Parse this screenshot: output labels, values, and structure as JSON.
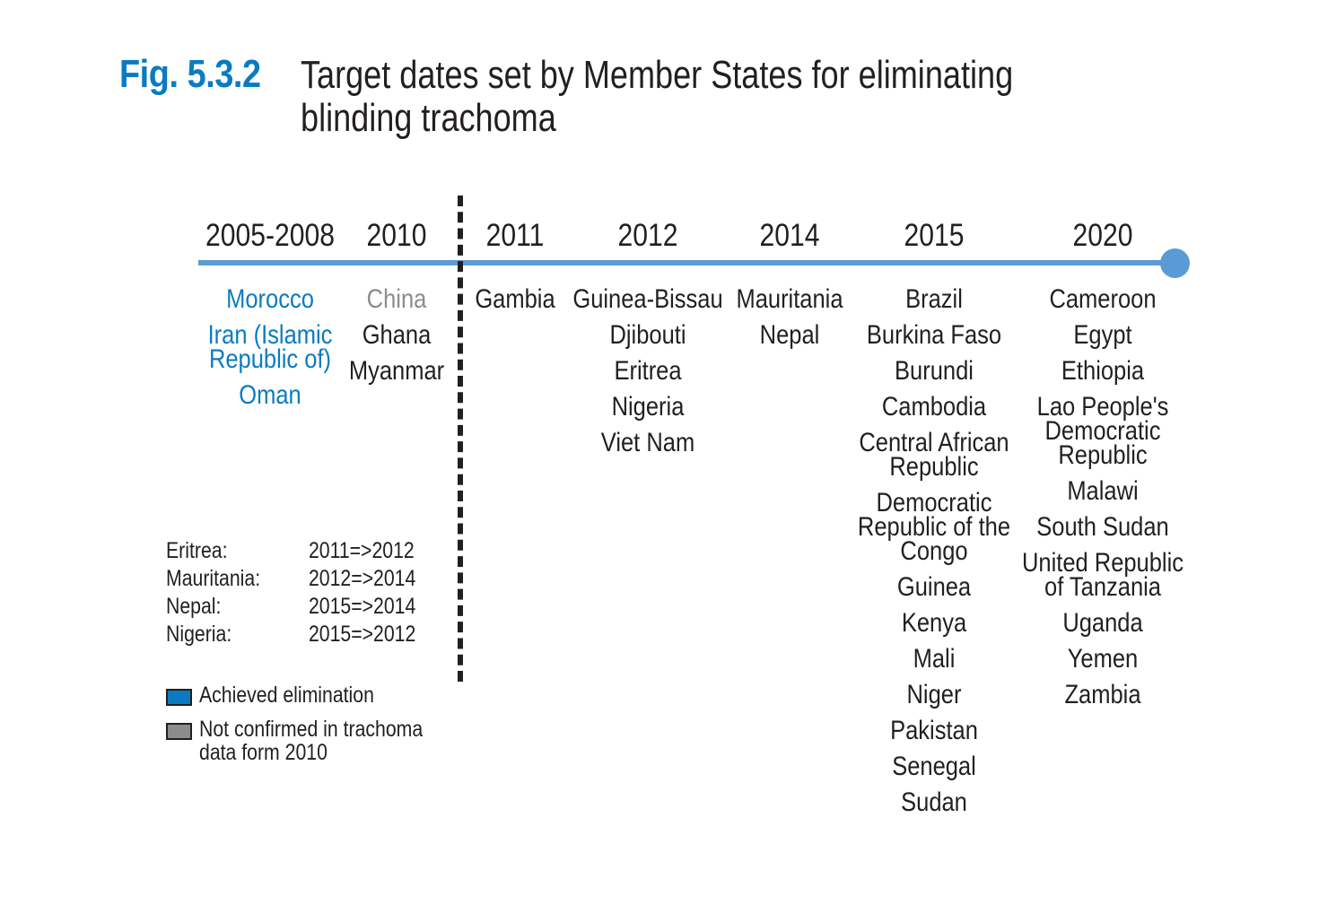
{
  "figure": {
    "label": "Fig. 5.3.2",
    "title_lines": [
      "Target dates set by Member States for eliminating",
      "blinding trachoma"
    ]
  },
  "colors": {
    "accent": "#0a7bc2",
    "timeline": "#5b9bd5",
    "achieved": "#0a7bc2",
    "not_confirmed": "#8c8c8c",
    "text": "#231f20"
  },
  "timeline": [
    {
      "year": "2005-2008",
      "countries": [
        {
          "name": "Morocco",
          "status": "achieved"
        },
        {
          "name": "Iran (Islamic\nRepublic of)",
          "status": "achieved"
        },
        {
          "name": "Oman",
          "status": "achieved"
        }
      ]
    },
    {
      "year": "2010",
      "countries": [
        {
          "name": "China",
          "status": "not_confirmed"
        },
        {
          "name": "Ghana",
          "status": "target"
        },
        {
          "name": "Myanmar",
          "status": "target"
        }
      ]
    },
    {
      "year": "2011",
      "countries": [
        {
          "name": "Gambia",
          "status": "target"
        }
      ]
    },
    {
      "year": "2012",
      "countries": [
        {
          "name": "Guinea-Bissau",
          "status": "target"
        },
        {
          "name": "Djibouti",
          "status": "target"
        },
        {
          "name": "Eritrea",
          "status": "target"
        },
        {
          "name": "Nigeria",
          "status": "target"
        },
        {
          "name": "Viet Nam",
          "status": "target"
        }
      ]
    },
    {
      "year": "2014",
      "countries": [
        {
          "name": "Mauritania",
          "status": "target"
        },
        {
          "name": "Nepal",
          "status": "target"
        }
      ]
    },
    {
      "year": "2015",
      "countries": [
        {
          "name": "Brazil",
          "status": "target"
        },
        {
          "name": "Burkina Faso",
          "status": "target"
        },
        {
          "name": "Burundi",
          "status": "target"
        },
        {
          "name": "Cambodia",
          "status": "target"
        },
        {
          "name": "Central African\nRepublic",
          "status": "target"
        },
        {
          "name": "Democratic\nRepublic of the\nCongo",
          "status": "target"
        },
        {
          "name": "Guinea",
          "status": "target"
        },
        {
          "name": "Kenya",
          "status": "target"
        },
        {
          "name": "Mali",
          "status": "target"
        },
        {
          "name": "Niger",
          "status": "target"
        },
        {
          "name": "Pakistan",
          "status": "target"
        },
        {
          "name": "Senegal",
          "status": "target"
        },
        {
          "name": "Sudan",
          "status": "target"
        }
      ]
    },
    {
      "year": "2020",
      "countries": [
        {
          "name": "Cameroon",
          "status": "target"
        },
        {
          "name": "Egypt",
          "status": "target"
        },
        {
          "name": "Ethiopia",
          "status": "target"
        },
        {
          "name": "Lao People's\nDemocratic\nRepublic",
          "status": "target"
        },
        {
          "name": "Malawi",
          "status": "target"
        },
        {
          "name": "South Sudan",
          "status": "target"
        },
        {
          "name": "United Republic\nof Tanzania",
          "status": "target"
        },
        {
          "name": "Uganda",
          "status": "target"
        },
        {
          "name": "Yemen",
          "status": "target"
        },
        {
          "name": "Zambia",
          "status": "target"
        }
      ]
    }
  ],
  "date_changes": [
    {
      "country": "Eritrea:",
      "change": "2011=>2012"
    },
    {
      "country": "Mauritania:",
      "change": "2012=>2014"
    },
    {
      "country": "Nepal:",
      "change": "2015=>2014"
    },
    {
      "country": "Nigeria:",
      "change": "2015=>2012"
    }
  ],
  "legend": [
    {
      "label": "Achieved elimination",
      "swatch": "#0a7bc2"
    },
    {
      "label": "Not confirmed in trachoma\ndata form 2010",
      "swatch": "#8c8c8c"
    }
  ]
}
